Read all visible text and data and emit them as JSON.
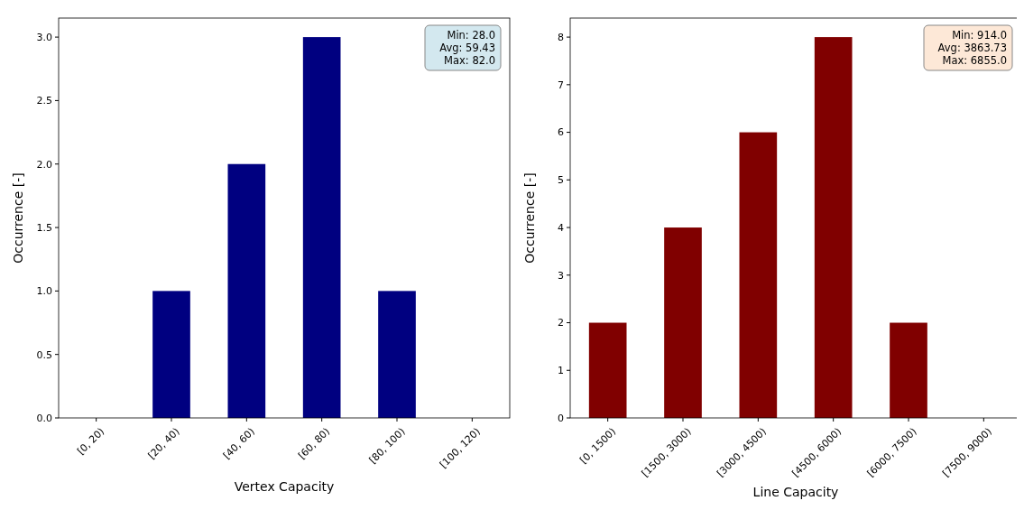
{
  "chart_data": [
    {
      "type": "bar",
      "categories": [
        "[0, 20)",
        "[20, 40)",
        "[40, 60)",
        "[60, 80)",
        "[80, 100)",
        "[100, 120)"
      ],
      "values": [
        0,
        1,
        2,
        3,
        1,
        0
      ],
      "color": "#000080",
      "xlabel": "Vertex Capacity",
      "ylabel": "Occurrence [-]",
      "ylim": [
        0,
        3.15
      ],
      "yticks": [
        {
          "value": 0,
          "label": "0.0"
        },
        {
          "value": 0.5,
          "label": "0.5"
        },
        {
          "value": 1,
          "label": "1.0"
        },
        {
          "value": 1.5,
          "label": "1.5"
        },
        {
          "value": 2,
          "label": "2.0"
        },
        {
          "value": 2.5,
          "label": "2.5"
        },
        {
          "value": 3,
          "label": "3.0"
        }
      ],
      "annotations": [
        "Min: 28.0\nAvg: 59.43\nMax: 82.0"
      ],
      "grid": false
    },
    {
      "type": "bar",
      "categories": [
        "[0, 1500)",
        "[1500, 3000)",
        "[3000, 4500)",
        "[4500, 6000)",
        "[6000, 7500)",
        "[7500, 9000)"
      ],
      "values": [
        2,
        4,
        6,
        8,
        2,
        0
      ],
      "color": "#800000",
      "xlabel": "Line Capacity",
      "ylabel": "Occurrence [-]",
      "ylim": [
        0,
        8.4
      ],
      "yticks": [
        0,
        1,
        2,
        3,
        4,
        5,
        6,
        7,
        8
      ],
      "annotations": [
        "Min: 914.0\nAvg: 3863.73\nMax: 6855.0"
      ],
      "grid": false
    }
  ]
}
